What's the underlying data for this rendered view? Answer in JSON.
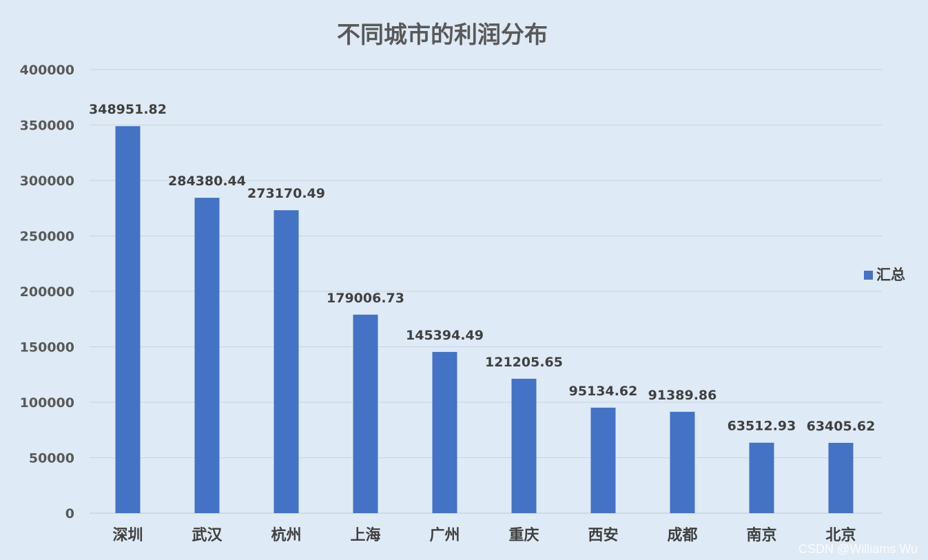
{
  "chart_data": {
    "type": "bar",
    "title": "不同城市的利润分布",
    "xlabel": "",
    "ylabel": "",
    "categories": [
      "深圳",
      "武汉",
      "杭州",
      "上海",
      "广州",
      "重庆",
      "西安",
      "成都",
      "南京",
      "北京"
    ],
    "series": [
      {
        "name": "汇总",
        "values": [
          348951.82,
          284380.44,
          273170.49,
          179006.73,
          145394.49,
          121205.65,
          95134.62,
          91389.86,
          63512.93,
          63405.62
        ],
        "labels": [
          "348951.82",
          "284380.44",
          "273170.49",
          "179006.73",
          "145394.49",
          "121205.65",
          "95134.62",
          "91389.86",
          "63512.93",
          "63405.62"
        ]
      }
    ],
    "ylim": [
      0,
      400000
    ],
    "yticks": [
      "0",
      "50000",
      "100000",
      "150000",
      "200000",
      "250000",
      "300000",
      "350000",
      "400000"
    ],
    "grid": true,
    "legend_position": "right",
    "colors": {
      "bar": "#4472c4",
      "background": "#deeaf5",
      "grid": "#c9d3dc"
    }
  },
  "watermark": "CSDN @Williams Wu"
}
